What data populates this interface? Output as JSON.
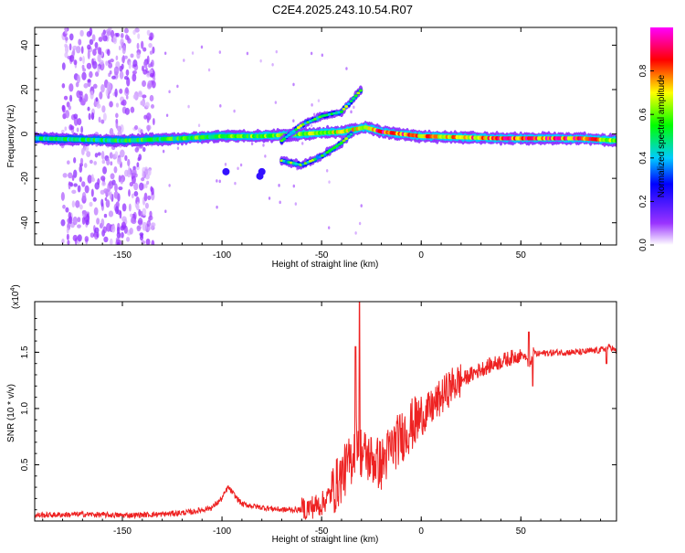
{
  "title": "C2E4.2025.243.10.54.R07",
  "chart_data": [
    {
      "type": "heatmap",
      "xlabel": "Height of straight line (km)",
      "ylabel": "Frequency (Hz)",
      "xlim": [
        -194,
        98
      ],
      "ylim": [
        -50,
        48
      ],
      "xticks": [
        -150,
        -100,
        -50,
        0,
        50
      ],
      "xtick_labels": [
        "-150",
        "-100",
        "-50",
        "0",
        "50"
      ],
      "yticks": [
        -40,
        -20,
        0,
        20,
        40
      ],
      "ytick_labels": [
        "-40",
        "-20",
        "0",
        "20",
        "40"
      ],
      "colorbar": {
        "label": "Normalized spectral amplitude",
        "range": [
          0,
          1
        ],
        "ticks": [
          0,
          0.2,
          0.4,
          0.6,
          0.8
        ],
        "tick_labels": [
          "0.0",
          "0.2",
          "0.4",
          "0.6",
          "0.8"
        ],
        "colors": [
          "#ffffff",
          "#9a33ff",
          "#0000ff",
          "#00ccff",
          "#00ff00",
          "#ffff00",
          "#ff0000",
          "#ff00ff"
        ]
      },
      "ridges": [
        {
          "name": "main-band",
          "points": [
            [
              -194,
              -2
            ],
            [
              -150,
              -3
            ],
            [
              -120,
              -2
            ],
            [
              -100,
              -1
            ],
            [
              -80,
              -1
            ],
            [
              -60,
              0
            ],
            [
              -40,
              1
            ],
            [
              -28,
              3
            ],
            [
              -20,
              1
            ],
            [
              0,
              -1
            ],
            [
              40,
              -2
            ],
            [
              80,
              -2
            ],
            [
              98,
              -3
            ]
          ]
        },
        {
          "name": "upper-branch",
          "points": [
            [
              -70,
              -3
            ],
            [
              -60,
              4
            ],
            [
              -50,
              8
            ],
            [
              -45,
              9
            ],
            [
              -40,
              10
            ],
            [
              -35,
              15
            ],
            [
              -30,
              20
            ]
          ]
        },
        {
          "name": "lower-branch",
          "points": [
            [
              -70,
              -12
            ],
            [
              -60,
              -14
            ],
            [
              -50,
              -10
            ],
            [
              -40,
              -4
            ],
            [
              -35,
              0
            ]
          ]
        }
      ],
      "intensity": [
        {
          "x": -194,
          "value": 0.5
        },
        {
          "x": -150,
          "value": 0.55
        },
        {
          "x": -100,
          "value": 0.6
        },
        {
          "x": -60,
          "value": 0.65
        },
        {
          "x": -30,
          "value": 0.75
        },
        {
          "x": -20,
          "value": 0.95
        },
        {
          "x": 0,
          "value": 0.8
        },
        {
          "x": 30,
          "value": 0.85
        },
        {
          "x": 60,
          "value": 0.9
        },
        {
          "x": 80,
          "value": 0.9
        },
        {
          "x": 98,
          "value": 0.7
        }
      ],
      "scatter_region": {
        "x_range": [
          -180,
          -134
        ],
        "f_range": [
          -50,
          48
        ],
        "amplitude": 0.05
      }
    },
    {
      "type": "line",
      "xlabel": "Height of straight line (km)",
      "ylabel": "SNR (10 * v/v)",
      "multiplier_label": "(x10",
      "multiplier_exponent": "4",
      "multiplier_close": ")",
      "xlim": [
        -194,
        98
      ],
      "ylim": [
        0,
        1.95
      ],
      "xticks": [
        -150,
        -100,
        -50,
        0,
        50
      ],
      "xtick_labels": [
        "-150",
        "-100",
        "-50",
        "0",
        "50"
      ],
      "yticks": [
        0.5,
        1.0,
        1.5
      ],
      "ytick_labels": [
        "0.5",
        "1.0",
        "1.5"
      ],
      "color": "#ee2222",
      "series": [
        {
          "name": "SNR",
          "x": [
            -194,
            -170,
            -150,
            -130,
            -115,
            -105,
            -100,
            -97,
            -90,
            -80,
            -70,
            -60,
            -50,
            -45,
            -40,
            -35,
            -32,
            -30,
            -25,
            -20,
            -15,
            -10,
            -5,
            0,
            5,
            10,
            15,
            20,
            30,
            40,
            50,
            53,
            54,
            55,
            56,
            58,
            60,
            70,
            80,
            90,
            95,
            98
          ],
          "y": [
            0.05,
            0.06,
            0.05,
            0.06,
            0.08,
            0.12,
            0.2,
            0.3,
            0.15,
            0.12,
            0.1,
            0.1,
            0.15,
            0.25,
            0.4,
            0.55,
            0.75,
            0.6,
            0.55,
            0.5,
            0.65,
            0.75,
            0.85,
            0.92,
            1.0,
            1.1,
            1.2,
            1.25,
            1.35,
            1.42,
            1.48,
            1.45,
            1.35,
            1.4,
            1.52,
            1.48,
            1.49,
            1.5,
            1.5,
            1.52,
            1.55,
            1.5
          ]
        }
      ],
      "spikes": [
        {
          "x": -31,
          "y": 1.95
        },
        {
          "x": -33,
          "y": 1.55
        },
        {
          "x": 54,
          "y": 1.68
        },
        {
          "x": 56,
          "y": 1.2
        },
        {
          "x": 93,
          "y": 1.4
        }
      ]
    }
  ]
}
